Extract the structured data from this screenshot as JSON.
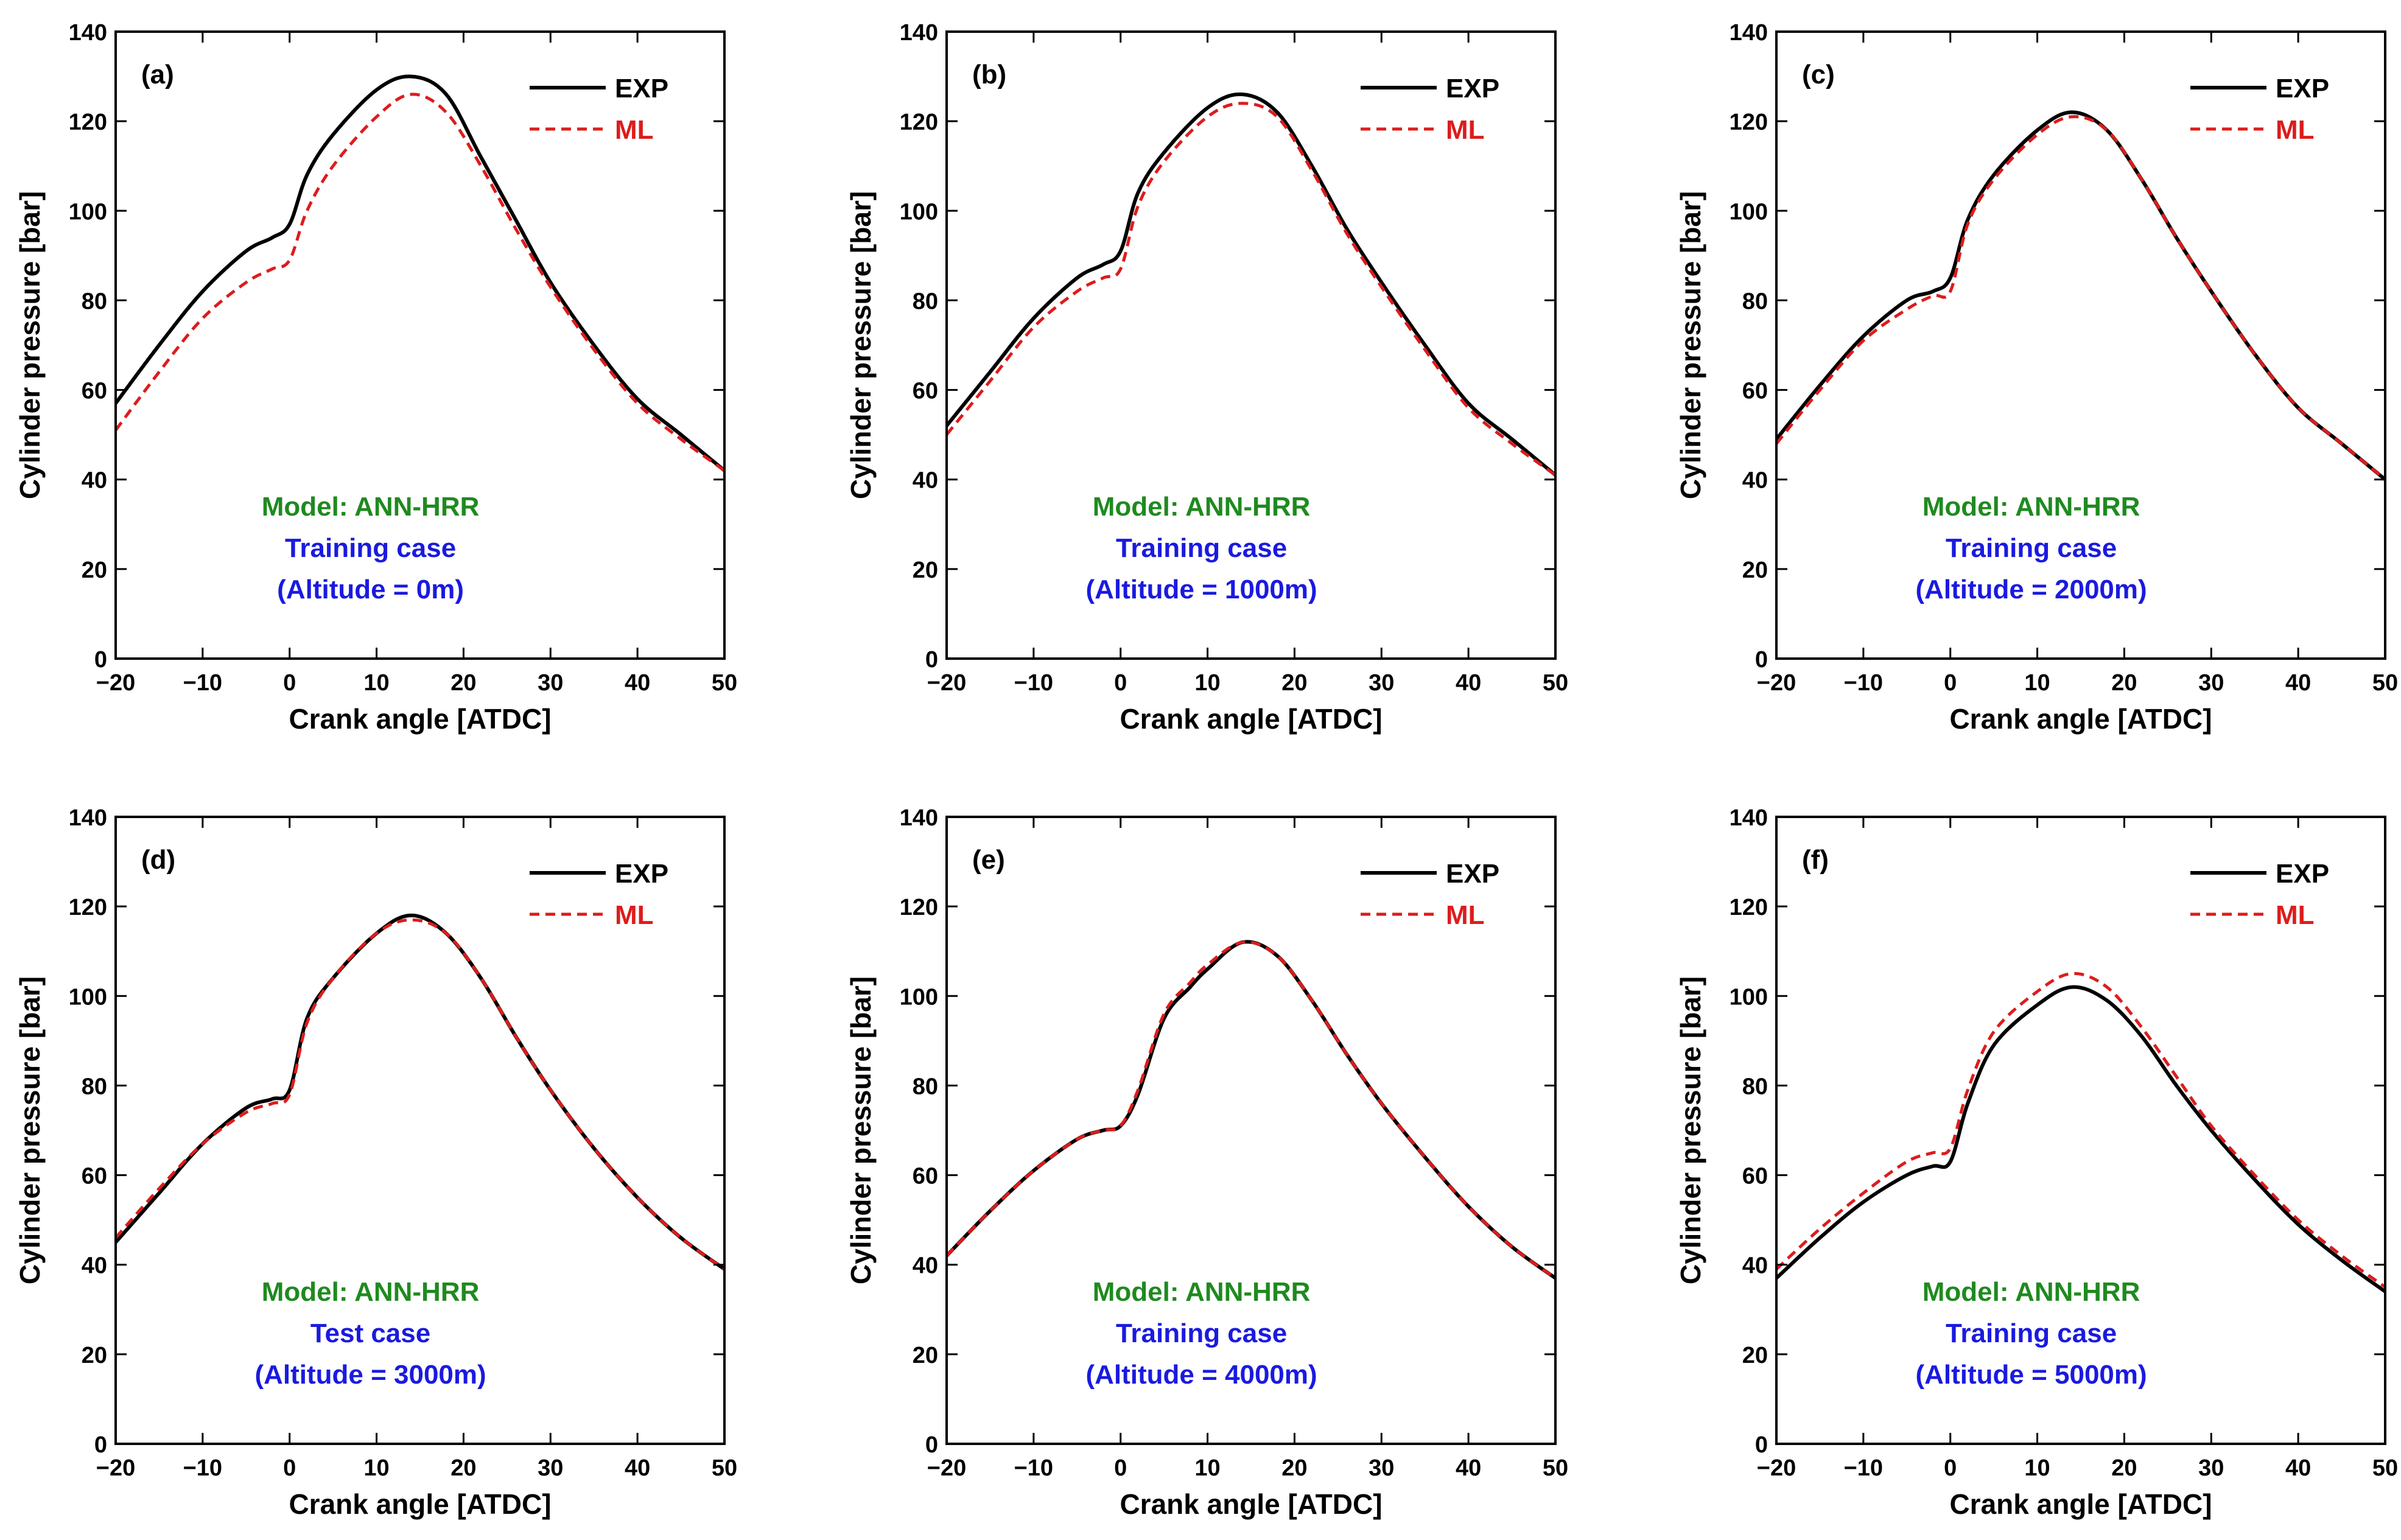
{
  "figure": {
    "colors": {
      "exp": "#000000",
      "ml": "#dd1c1c",
      "model": "#1f8a1f",
      "case": "#1a1ae0",
      "axis": "#000000"
    }
  },
  "chart_data": [
    {
      "type": "line",
      "panel": "(a)",
      "xlabel": "Crank angle [ATDC]",
      "ylabel": "Cylinder pressure [bar]",
      "xlim": [
        -20,
        50
      ],
      "ylim": [
        0,
        140
      ],
      "xticks": [
        "−20",
        "−10",
        "0",
        "10",
        "20",
        "30",
        "40",
        "50"
      ],
      "yticks": [
        "0",
        "20",
        "40",
        "60",
        "80",
        "100",
        "120",
        "140"
      ],
      "legend": [
        "EXP",
        "ML"
      ],
      "legend_position": "top-right",
      "annotation": [
        "Model: ANN-HRR",
        "Training case",
        "(Altitude = 0m)"
      ],
      "x": [
        -20,
        -15,
        -10,
        -5,
        -2,
        0,
        2,
        5,
        10,
        14,
        18,
        22,
        26,
        30,
        35,
        40,
        45,
        50
      ],
      "series": [
        {
          "name": "EXP",
          "values": [
            57,
            70,
            82,
            91,
            94,
            97,
            108,
            117,
            127,
            130,
            126,
            112,
            98,
            84,
            70,
            58,
            50,
            42
          ]
        },
        {
          "name": "ML",
          "values": [
            51,
            64,
            76,
            84,
            87,
            89,
            100,
            110,
            121,
            126,
            122,
            110,
            96,
            83,
            69,
            57,
            49,
            42
          ]
        }
      ]
    },
    {
      "type": "line",
      "panel": "(b)",
      "xlabel": "Crank angle [ATDC]",
      "ylabel": "Cylinder pressure [bar]",
      "xlim": [
        -20,
        50
      ],
      "ylim": [
        0,
        140
      ],
      "xticks": [
        "−20",
        "−10",
        "0",
        "10",
        "20",
        "30",
        "40",
        "50"
      ],
      "yticks": [
        "0",
        "20",
        "40",
        "60",
        "80",
        "100",
        "120",
        "140"
      ],
      "legend": [
        "EXP",
        "ML"
      ],
      "legend_position": "top-right",
      "annotation": [
        "Model: ANN-HRR",
        "Training case",
        "(Altitude = 1000m)"
      ],
      "x": [
        -20,
        -15,
        -10,
        -5,
        -2,
        0,
        2,
        5,
        10,
        14,
        18,
        22,
        26,
        30,
        35,
        40,
        45,
        50
      ],
      "series": [
        {
          "name": "EXP",
          "values": [
            52,
            64,
            76,
            85,
            88,
            91,
            104,
            113,
            123,
            126,
            122,
            110,
            96,
            84,
            70,
            57,
            49,
            41
          ]
        },
        {
          "name": "ML",
          "values": [
            50,
            62,
            74,
            82,
            85,
            87,
            101,
            111,
            121,
            124,
            121,
            109,
            95,
            83,
            69,
            56,
            48,
            41
          ]
        }
      ]
    },
    {
      "type": "line",
      "panel": "(c)",
      "xlabel": "Crank angle [ATDC]",
      "ylabel": "Cylinder pressure [bar]",
      "xlim": [
        -20,
        50
      ],
      "ylim": [
        0,
        140
      ],
      "xticks": [
        "−20",
        "−10",
        "0",
        "10",
        "20",
        "30",
        "40",
        "50"
      ],
      "yticks": [
        "0",
        "20",
        "40",
        "60",
        "80",
        "100",
        "120",
        "140"
      ],
      "legend": [
        "EXP",
        "ML"
      ],
      "legend_position": "top-right",
      "annotation": [
        "Model: ANN-HRR",
        "Training case",
        "(Altitude = 2000m)"
      ],
      "x": [
        -20,
        -15,
        -10,
        -5,
        -2,
        0,
        2,
        5,
        10,
        14,
        18,
        22,
        26,
        30,
        35,
        40,
        45,
        50
      ],
      "series": [
        {
          "name": "EXP",
          "values": [
            49,
            61,
            72,
            80,
            82,
            85,
            98,
            108,
            118,
            122,
            118,
            107,
            94,
            82,
            68,
            56,
            48,
            40
          ]
        },
        {
          "name": "ML",
          "values": [
            48,
            60,
            71,
            78,
            81,
            82,
            97,
            107,
            117,
            121,
            118,
            107,
            94,
            82,
            68,
            56,
            48,
            40
          ]
        }
      ]
    },
    {
      "type": "line",
      "panel": "(d)",
      "xlabel": "Crank angle [ATDC]",
      "ylabel": "Cylinder pressure [bar]",
      "xlim": [
        -20,
        50
      ],
      "ylim": [
        0,
        140
      ],
      "xticks": [
        "−20",
        "−10",
        "0",
        "10",
        "20",
        "30",
        "40",
        "50"
      ],
      "yticks": [
        "0",
        "20",
        "40",
        "60",
        "80",
        "100",
        "120",
        "140"
      ],
      "legend": [
        "EXP",
        "ML"
      ],
      "legend_position": "top-right",
      "annotation": [
        "Model: ANN-HRR",
        "Test case",
        "(Altitude = 3000m)"
      ],
      "x": [
        -20,
        -15,
        -10,
        -5,
        -2,
        0,
        2,
        5,
        10,
        14,
        18,
        22,
        26,
        30,
        35,
        40,
        45,
        50
      ],
      "series": [
        {
          "name": "EXP",
          "values": [
            45,
            56,
            67,
            75,
            77,
            79,
            95,
            104,
            114,
            118,
            114,
            104,
            91,
            79,
            66,
            55,
            46,
            39
          ]
        },
        {
          "name": "ML",
          "values": [
            46,
            57,
            67,
            74,
            76,
            78,
            94,
            104,
            114,
            117,
            114,
            104,
            91,
            79,
            66,
            55,
            46,
            39
          ]
        }
      ]
    },
    {
      "type": "line",
      "panel": "(e)",
      "xlabel": "Crank angle [ATDC]",
      "ylabel": "Cylinder pressure [bar]",
      "xlim": [
        -20,
        50
      ],
      "ylim": [
        0,
        140
      ],
      "xticks": [
        "−20",
        "−10",
        "0",
        "10",
        "20",
        "30",
        "40",
        "50"
      ],
      "yticks": [
        "0",
        "20",
        "40",
        "60",
        "80",
        "100",
        "120",
        "140"
      ],
      "legend": [
        "EXP",
        "ML"
      ],
      "legend_position": "top-right",
      "annotation": [
        "Model: ANN-HRR",
        "Training case",
        "(Altitude = 4000m)"
      ],
      "x": [
        -20,
        -15,
        -10,
        -5,
        -2,
        0,
        2,
        5,
        8,
        10,
        14,
        18,
        22,
        26,
        30,
        35,
        40,
        45,
        50
      ],
      "series": [
        {
          "name": "EXP",
          "values": [
            42,
            52,
            61,
            68,
            70,
            71,
            78,
            95,
            102,
            106,
            112,
            109,
            99,
            87,
            76,
            64,
            53,
            44,
            37
          ]
        },
        {
          "name": "ML",
          "values": [
            42,
            52,
            61,
            68,
            70,
            71,
            79,
            96,
            103,
            107,
            112,
            109,
            99,
            87,
            76,
            64,
            53,
            44,
            37
          ]
        }
      ]
    },
    {
      "type": "line",
      "panel": "(f)",
      "xlabel": "Crank angle [ATDC]",
      "ylabel": "Cylinder pressure [bar]",
      "xlim": [
        -20,
        50
      ],
      "ylim": [
        0,
        140
      ],
      "xticks": [
        "−20",
        "−10",
        "0",
        "10",
        "20",
        "30",
        "40",
        "50"
      ],
      "yticks": [
        "0",
        "20",
        "40",
        "60",
        "80",
        "100",
        "120",
        "140"
      ],
      "legend": [
        "EXP",
        "ML"
      ],
      "legend_position": "top-right",
      "annotation": [
        "Model: ANN-HRR",
        "Training case",
        "(Altitude = 5000m)"
      ],
      "x": [
        -20,
        -15,
        -10,
        -5,
        -2,
        0,
        2,
        5,
        10,
        14,
        18,
        22,
        26,
        30,
        35,
        40,
        45,
        50
      ],
      "series": [
        {
          "name": "EXP",
          "values": [
            37,
            46,
            54,
            60,
            62,
            63,
            76,
            89,
            98,
            102,
            99,
            91,
            80,
            70,
            59,
            49,
            41,
            34
          ]
        },
        {
          "name": "ML",
          "values": [
            39,
            48,
            56,
            63,
            65,
            66,
            79,
            92,
            101,
            105,
            102,
            93,
            82,
            71,
            60,
            50,
            42,
            35
          ]
        }
      ]
    }
  ]
}
